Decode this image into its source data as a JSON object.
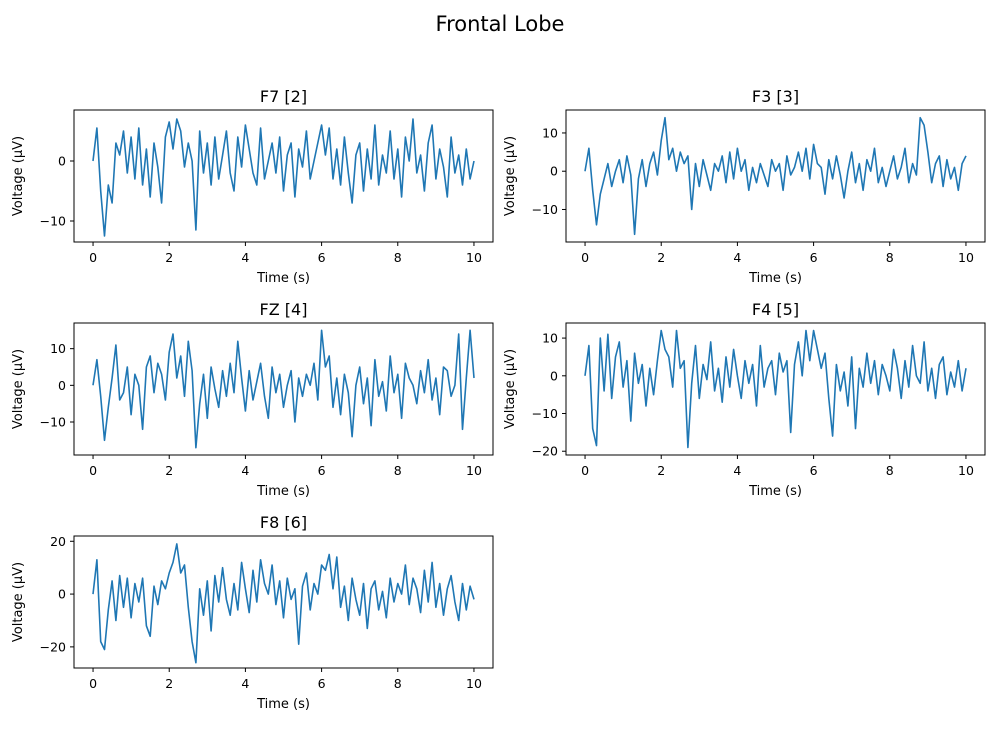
{
  "figure": {
    "title": "Frontal Lobe",
    "line_color": "#1f77b4"
  },
  "chart_data": [
    {
      "type": "line",
      "title": "F7 [2]",
      "xlabel": "Time (s)",
      "ylabel": "Voltage (µV)",
      "xlim": [
        -0.5,
        10.5
      ],
      "ylim": [
        -13.5,
        8.5
      ],
      "xticks": [
        0,
        2,
        4,
        6,
        8,
        10
      ],
      "yticks": [
        -10,
        0
      ],
      "series": [
        {
          "x": [
            0,
            0.1,
            0.2,
            0.3,
            0.4,
            0.5,
            0.6,
            0.7,
            0.8,
            0.9,
            1.0,
            1.1,
            1.2,
            1.3,
            1.4,
            1.5,
            1.6,
            1.7,
            1.8,
            1.9,
            2.0,
            2.1,
            2.2,
            2.3,
            2.4,
            2.5,
            2.6,
            2.7,
            2.8,
            2.9,
            3.0,
            3.1,
            3.2,
            3.3,
            3.4,
            3.5,
            3.6,
            3.7,
            3.8,
            3.9,
            4.0,
            4.1,
            4.2,
            4.3,
            4.4,
            4.5,
            4.6,
            4.7,
            4.8,
            4.9,
            5.0,
            5.1,
            5.2,
            5.3,
            5.4,
            5.5,
            5.6,
            5.7,
            5.8,
            5.9,
            6.0,
            6.1,
            6.2,
            6.3,
            6.4,
            6.5,
            6.6,
            6.7,
            6.8,
            6.9,
            7.0,
            7.1,
            7.2,
            7.3,
            7.4,
            7.5,
            7.6,
            7.7,
            7.8,
            7.9,
            8.0,
            8.1,
            8.2,
            8.3,
            8.4,
            8.5,
            8.6,
            8.7,
            8.8,
            8.9,
            9.0,
            9.1,
            9.2,
            9.3,
            9.4,
            9.5,
            9.6,
            9.7,
            9.8,
            9.9,
            10.0
          ],
          "values": [
            0,
            5.5,
            -5,
            -12.5,
            -4,
            -7,
            3,
            1,
            5,
            -2,
            4,
            -3,
            5.5,
            -4,
            2,
            -6,
            3,
            -1,
            -7,
            4,
            6.5,
            2,
            7,
            5,
            -1,
            3,
            0,
            -11.5,
            5,
            -2,
            3,
            -4,
            4,
            -3,
            1,
            5,
            -2,
            -5,
            4,
            -1,
            6,
            2,
            -2,
            -4,
            5.5,
            -3,
            0,
            3,
            -2,
            4,
            -5,
            1,
            3,
            -6,
            2,
            -1,
            5,
            -3,
            0,
            3,
            6,
            1,
            5.5,
            -3,
            2,
            -4,
            4,
            -2,
            -7,
            1,
            3,
            -5,
            2,
            -3,
            6,
            -4,
            1,
            -2,
            5,
            -3,
            2,
            -6,
            4,
            0,
            7,
            -2,
            1,
            -5,
            3,
            6,
            -3,
            2,
            -1,
            -6,
            4,
            -2,
            1,
            -4,
            2,
            -3,
            0
          ]
        }
      ]
    },
    {
      "type": "line",
      "title": "F3 [3]",
      "xlabel": "Time (s)",
      "ylabel": "Voltage (µV)",
      "xlim": [
        -0.5,
        10.5
      ],
      "ylim": [
        -18.5,
        16
      ],
      "xticks": [
        0,
        2,
        4,
        6,
        8,
        10
      ],
      "yticks": [
        -10,
        0,
        10
      ],
      "series": [
        {
          "x": [
            0,
            0.1,
            0.2,
            0.3,
            0.4,
            0.5,
            0.6,
            0.7,
            0.8,
            0.9,
            1.0,
            1.1,
            1.2,
            1.3,
            1.4,
            1.5,
            1.6,
            1.7,
            1.8,
            1.9,
            2.0,
            2.1,
            2.2,
            2.3,
            2.4,
            2.5,
            2.6,
            2.7,
            2.8,
            2.9,
            3.0,
            3.1,
            3.2,
            3.3,
            3.4,
            3.5,
            3.6,
            3.7,
            3.8,
            3.9,
            4.0,
            4.1,
            4.2,
            4.3,
            4.4,
            4.5,
            4.6,
            4.7,
            4.8,
            4.9,
            5.0,
            5.1,
            5.2,
            5.3,
            5.4,
            5.5,
            5.6,
            5.7,
            5.8,
            5.9,
            6.0,
            6.1,
            6.2,
            6.3,
            6.4,
            6.5,
            6.6,
            6.7,
            6.8,
            6.9,
            7.0,
            7.1,
            7.2,
            7.3,
            7.4,
            7.5,
            7.6,
            7.7,
            7.8,
            7.9,
            8.0,
            8.1,
            8.2,
            8.3,
            8.4,
            8.5,
            8.6,
            8.7,
            8.8,
            8.9,
            9.0,
            9.1,
            9.2,
            9.3,
            9.4,
            9.5,
            9.6,
            9.7,
            9.8,
            9.9,
            10.0
          ],
          "values": [
            0,
            6,
            -5,
            -14,
            -6,
            -2,
            2,
            -4,
            0,
            3,
            -3,
            4,
            -1,
            -16.5,
            -2,
            3,
            -4,
            2,
            5,
            -1,
            8,
            14,
            3,
            6,
            0,
            5,
            2,
            4,
            -10,
            2,
            -4,
            3,
            -1,
            -5,
            2,
            0,
            4,
            -3,
            5,
            -2,
            6,
            0,
            3,
            -5,
            1,
            -3,
            2,
            -1,
            -4,
            3,
            0,
            2,
            -5,
            4,
            -1,
            1,
            5,
            0,
            6,
            -2,
            7,
            2,
            1,
            -6,
            3,
            -2,
            4,
            -1,
            -7,
            0,
            5,
            -3,
            2,
            -5,
            3,
            0,
            6,
            -3,
            1,
            -4,
            0,
            4,
            -2,
            1,
            6,
            -3,
            2,
            -1,
            14,
            12,
            5,
            -3,
            2,
            4,
            -4,
            3,
            -2,
            1,
            -5,
            2,
            4
          ]
        }
      ]
    },
    {
      "type": "line",
      "title": "FZ [4]",
      "xlabel": "Time (s)",
      "ylabel": "Voltage (µV)",
      "xlim": [
        -0.5,
        10.5
      ],
      "ylim": [
        -19,
        17
      ],
      "xticks": [
        0,
        2,
        4,
        6,
        8,
        10
      ],
      "yticks": [
        -10,
        0,
        10
      ],
      "series": [
        {
          "x": [
            0,
            0.1,
            0.2,
            0.3,
            0.4,
            0.5,
            0.6,
            0.7,
            0.8,
            0.9,
            1.0,
            1.1,
            1.2,
            1.3,
            1.4,
            1.5,
            1.6,
            1.7,
            1.8,
            1.9,
            2.0,
            2.1,
            2.2,
            2.3,
            2.4,
            2.5,
            2.6,
            2.7,
            2.8,
            2.9,
            3.0,
            3.1,
            3.2,
            3.3,
            3.4,
            3.5,
            3.6,
            3.7,
            3.8,
            3.9,
            4.0,
            4.1,
            4.2,
            4.3,
            4.4,
            4.5,
            4.6,
            4.7,
            4.8,
            4.9,
            5.0,
            5.1,
            5.2,
            5.3,
            5.4,
            5.5,
            5.6,
            5.7,
            5.8,
            5.9,
            6.0,
            6.1,
            6.2,
            6.3,
            6.4,
            6.5,
            6.6,
            6.7,
            6.8,
            6.9,
            7.0,
            7.1,
            7.2,
            7.3,
            7.4,
            7.5,
            7.6,
            7.7,
            7.8,
            7.9,
            8.0,
            8.1,
            8.2,
            8.3,
            8.4,
            8.5,
            8.6,
            8.7,
            8.8,
            8.9,
            9.0,
            9.1,
            9.2,
            9.3,
            9.4,
            9.5,
            9.6,
            9.7,
            9.8,
            9.9,
            10.0
          ],
          "values": [
            0,
            7,
            -3,
            -15,
            -6,
            2,
            11,
            -4,
            -2,
            5,
            -8,
            3,
            0,
            -12,
            5,
            8,
            -2,
            6,
            3,
            -4,
            9,
            14,
            2,
            8,
            -3,
            12,
            4,
            -17,
            -5,
            3,
            -9,
            5,
            -1,
            -6,
            4,
            -3,
            6,
            -2,
            12,
            2,
            -7,
            4,
            -4,
            1,
            6,
            -3,
            -9,
            5,
            -2,
            3,
            -6,
            0,
            4,
            -10,
            2,
            -3,
            3,
            0,
            6,
            -4,
            15,
            5,
            8,
            -6,
            2,
            -8,
            3,
            -2,
            -14,
            0,
            5,
            -5,
            2,
            -11,
            7,
            -3,
            1,
            -7,
            8,
            -2,
            3,
            -9,
            6,
            2,
            0,
            -5,
            4,
            -2,
            7,
            -4,
            2,
            -8,
            5,
            4,
            -3,
            0,
            14,
            -12,
            2,
            15,
            2
          ]
        }
      ]
    },
    {
      "type": "line",
      "title": "F4 [5]",
      "xlabel": "Time (s)",
      "ylabel": "Voltage (µV)",
      "xlim": [
        -0.5,
        10.5
      ],
      "ylim": [
        -21,
        14
      ],
      "xticks": [
        0,
        2,
        4,
        6,
        8,
        10
      ],
      "yticks": [
        -20,
        -10,
        0,
        10
      ],
      "series": [
        {
          "x": [
            0,
            0.1,
            0.2,
            0.3,
            0.4,
            0.5,
            0.6,
            0.7,
            0.8,
            0.9,
            1.0,
            1.1,
            1.2,
            1.3,
            1.4,
            1.5,
            1.6,
            1.7,
            1.8,
            1.9,
            2.0,
            2.1,
            2.2,
            2.3,
            2.4,
            2.5,
            2.6,
            2.7,
            2.8,
            2.9,
            3.0,
            3.1,
            3.2,
            3.3,
            3.4,
            3.5,
            3.6,
            3.7,
            3.8,
            3.9,
            4.0,
            4.1,
            4.2,
            4.3,
            4.4,
            4.5,
            4.6,
            4.7,
            4.8,
            4.9,
            5.0,
            5.1,
            5.2,
            5.3,
            5.4,
            5.5,
            5.6,
            5.7,
            5.8,
            5.9,
            6.0,
            6.1,
            6.2,
            6.3,
            6.4,
            6.5,
            6.6,
            6.7,
            6.8,
            6.9,
            7.0,
            7.1,
            7.2,
            7.3,
            7.4,
            7.5,
            7.6,
            7.7,
            7.8,
            7.9,
            8.0,
            8.1,
            8.2,
            8.3,
            8.4,
            8.5,
            8.6,
            8.7,
            8.8,
            8.9,
            9.0,
            9.1,
            9.2,
            9.3,
            9.4,
            9.5,
            9.6,
            9.7,
            9.8,
            9.9,
            10.0
          ],
          "values": [
            0,
            8,
            -14,
            -18.5,
            10,
            -4,
            11,
            -6,
            5,
            9,
            -3,
            4,
            -12,
            6,
            -2,
            3,
            -8,
            2,
            -5,
            4,
            12,
            7,
            5,
            -3,
            12,
            2,
            4,
            -19,
            -2,
            8,
            -6,
            3,
            -1,
            9,
            -4,
            2,
            -7,
            5,
            -3,
            7,
            0,
            -6,
            4,
            -2,
            3,
            -8,
            8,
            -3,
            2,
            4,
            -5,
            6,
            1,
            4,
            -15,
            3,
            9,
            0,
            12,
            4,
            12,
            7,
            2,
            6,
            -6,
            -16,
            3,
            -4,
            1,
            -8,
            5,
            -14,
            2,
            -3,
            6,
            -2,
            4,
            -5,
            3,
            0,
            -4,
            7,
            2,
            -6,
            4,
            -3,
            8,
            0,
            -2,
            9,
            -4,
            2,
            -6,
            3,
            5,
            -5,
            1,
            -3,
            4,
            -4,
            2
          ]
        }
      ]
    },
    {
      "type": "line",
      "title": "F8 [6]",
      "xlabel": "Time (s)",
      "ylabel": "Voltage (µV)",
      "xlim": [
        -0.5,
        10.5
      ],
      "ylim": [
        -28,
        22
      ],
      "xticks": [
        0,
        2,
        4,
        6,
        8,
        10
      ],
      "yticks": [
        -20,
        0,
        20
      ],
      "series": [
        {
          "x": [
            0,
            0.1,
            0.2,
            0.3,
            0.4,
            0.5,
            0.6,
            0.7,
            0.8,
            0.9,
            1.0,
            1.1,
            1.2,
            1.3,
            1.4,
            1.5,
            1.6,
            1.7,
            1.8,
            1.9,
            2.0,
            2.1,
            2.2,
            2.3,
            2.4,
            2.5,
            2.6,
            2.7,
            2.8,
            2.9,
            3.0,
            3.1,
            3.2,
            3.3,
            3.4,
            3.5,
            3.6,
            3.7,
            3.8,
            3.9,
            4.0,
            4.1,
            4.2,
            4.3,
            4.4,
            4.5,
            4.6,
            4.7,
            4.8,
            4.9,
            5.0,
            5.1,
            5.2,
            5.3,
            5.4,
            5.5,
            5.6,
            5.7,
            5.8,
            5.9,
            6.0,
            6.1,
            6.2,
            6.3,
            6.4,
            6.5,
            6.6,
            6.7,
            6.8,
            6.9,
            7.0,
            7.1,
            7.2,
            7.3,
            7.4,
            7.5,
            7.6,
            7.7,
            7.8,
            7.9,
            8.0,
            8.1,
            8.2,
            8.3,
            8.4,
            8.5,
            8.6,
            8.7,
            8.8,
            8.9,
            9.0,
            9.1,
            9.2,
            9.3,
            9.4,
            9.5,
            9.6,
            9.7,
            9.8,
            9.9,
            10.0
          ],
          "values": [
            0,
            13,
            -18,
            -21,
            -6,
            5,
            -10,
            7,
            -5,
            6,
            -9,
            4,
            -3,
            6,
            -12,
            -16,
            3,
            -4,
            5,
            2,
            8,
            12,
            19,
            8,
            11,
            -5,
            -18,
            -26,
            2,
            -8,
            5,
            -14,
            7,
            -3,
            10,
            -2,
            -8,
            4,
            -6,
            12,
            2,
            -7,
            9,
            -3,
            13,
            4,
            0,
            11,
            -4,
            5,
            -9,
            6,
            -2,
            2,
            -19,
            3,
            8,
            -6,
            4,
            0,
            11,
            9,
            15,
            2,
            14,
            -5,
            3,
            -10,
            6,
            -2,
            -8,
            4,
            -13,
            2,
            5,
            -6,
            1,
            -9,
            6,
            -3,
            4,
            0,
            11,
            -4,
            6,
            2,
            -7,
            9,
            -3,
            12,
            -5,
            4,
            -8,
            2,
            7,
            -3,
            -10,
            4,
            -6,
            3,
            -2
          ]
        }
      ]
    }
  ]
}
